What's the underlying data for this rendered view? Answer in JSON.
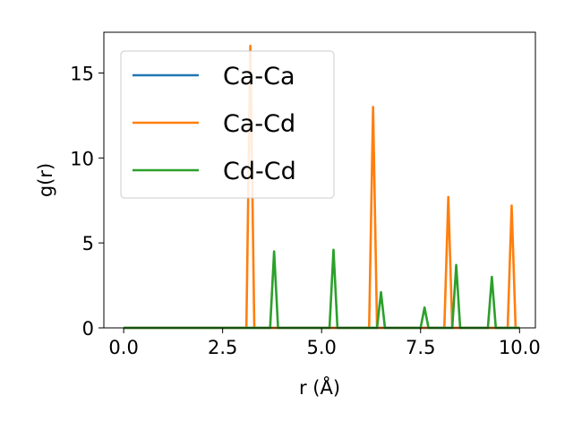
{
  "chart_data": {
    "type": "line",
    "xlabel": "r (Å)",
    "ylabel": "g(r)",
    "xlim": [
      -0.5,
      10.4
    ],
    "ylim": [
      0,
      17.4
    ],
    "xticks": [
      0.0,
      2.5,
      5.0,
      7.5,
      10.0
    ],
    "xtick_labels": [
      "0.0",
      "2.5",
      "5.0",
      "7.5",
      "10.0"
    ],
    "yticks": [
      0,
      5,
      10,
      15
    ],
    "ytick_labels": [
      "0",
      "5",
      "10",
      "15"
    ],
    "grid": false,
    "legend_position": "top-left",
    "series": [
      {
        "name": "Ca-Ca",
        "color": "#1f77b4",
        "x": [
          0.0,
          10.0
        ],
        "y": [
          0,
          0
        ]
      },
      {
        "name": "Ca-Cd",
        "color": "#ff7f0e",
        "x": [
          0.0,
          3.1,
          3.2,
          3.3,
          6.2,
          6.3,
          6.4,
          8.1,
          8.2,
          8.3,
          9.7,
          9.8,
          9.9,
          10.0
        ],
        "y": [
          0,
          0,
          16.6,
          0,
          0,
          13.0,
          0,
          0,
          7.7,
          0,
          0,
          7.2,
          0,
          0
        ]
      },
      {
        "name": "Cd-Cd",
        "color": "#2ca02c",
        "x": [
          0.0,
          3.7,
          3.8,
          3.9,
          5.2,
          5.3,
          5.4,
          6.4,
          6.5,
          6.6,
          7.5,
          7.6,
          7.7,
          8.3,
          8.4,
          8.5,
          9.2,
          9.3,
          9.4,
          10.0
        ],
        "y": [
          0,
          0,
          4.5,
          0,
          0,
          4.6,
          0,
          0,
          2.1,
          0,
          0,
          1.2,
          0,
          0,
          3.7,
          0,
          0,
          3.0,
          0,
          0
        ]
      }
    ]
  }
}
